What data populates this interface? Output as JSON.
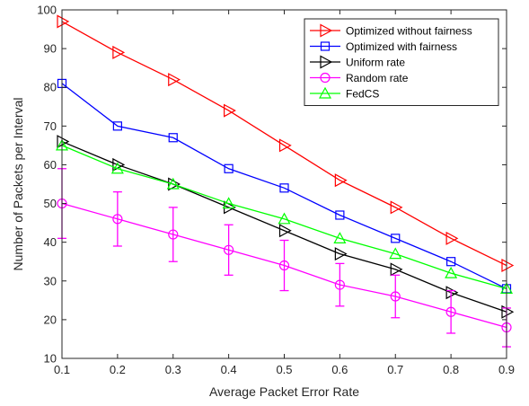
{
  "chart_data": {
    "type": "line",
    "xlabel": "Average Packet Error Rate",
    "ylabel": "Number of Packets per Interval",
    "xlim": [
      0.1,
      0.9
    ],
    "ylim": [
      10,
      100
    ],
    "x": [
      0.1,
      0.2,
      0.3,
      0.4,
      0.5,
      0.6,
      0.7,
      0.8,
      0.9
    ],
    "xticks": [
      "0.1",
      "0.2",
      "0.3",
      "0.4",
      "0.5",
      "0.6",
      "0.7",
      "0.8",
      "0.9"
    ],
    "yticks": [
      "10",
      "20",
      "30",
      "40",
      "50",
      "60",
      "70",
      "80",
      "90",
      "100"
    ],
    "grid": false,
    "legend_position": "top-right",
    "series": [
      {
        "name": "Optimized without fairness",
        "color": "#ff0000",
        "marker": "triangle-right",
        "values": [
          97,
          89,
          82,
          74,
          65,
          56,
          49,
          41,
          34
        ]
      },
      {
        "name": "Optimized with fairness",
        "color": "#0000ff",
        "marker": "square",
        "values": [
          81,
          70,
          67,
          59,
          54,
          47,
          41,
          35,
          28
        ]
      },
      {
        "name": "Uniform rate",
        "color": "#000000",
        "marker": "triangle-right",
        "values": [
          66,
          60,
          55,
          49,
          43,
          37,
          33,
          27,
          22
        ]
      },
      {
        "name": "Random rate",
        "color": "#ff00ff",
        "marker": "circle",
        "values": [
          50,
          46,
          42,
          38,
          34,
          29,
          26,
          22,
          18
        ],
        "error_low": [
          41,
          39,
          35,
          31.5,
          27.5,
          23.5,
          20.5,
          16.5,
          13
        ],
        "error_high": [
          59,
          53,
          49,
          44.5,
          40.5,
          34.5,
          31.5,
          27.5,
          23
        ]
      },
      {
        "name": "FedCS",
        "color": "#00ff00",
        "marker": "triangle-up",
        "values": [
          65,
          59,
          55,
          50,
          46,
          41,
          37,
          32,
          28
        ]
      }
    ]
  }
}
